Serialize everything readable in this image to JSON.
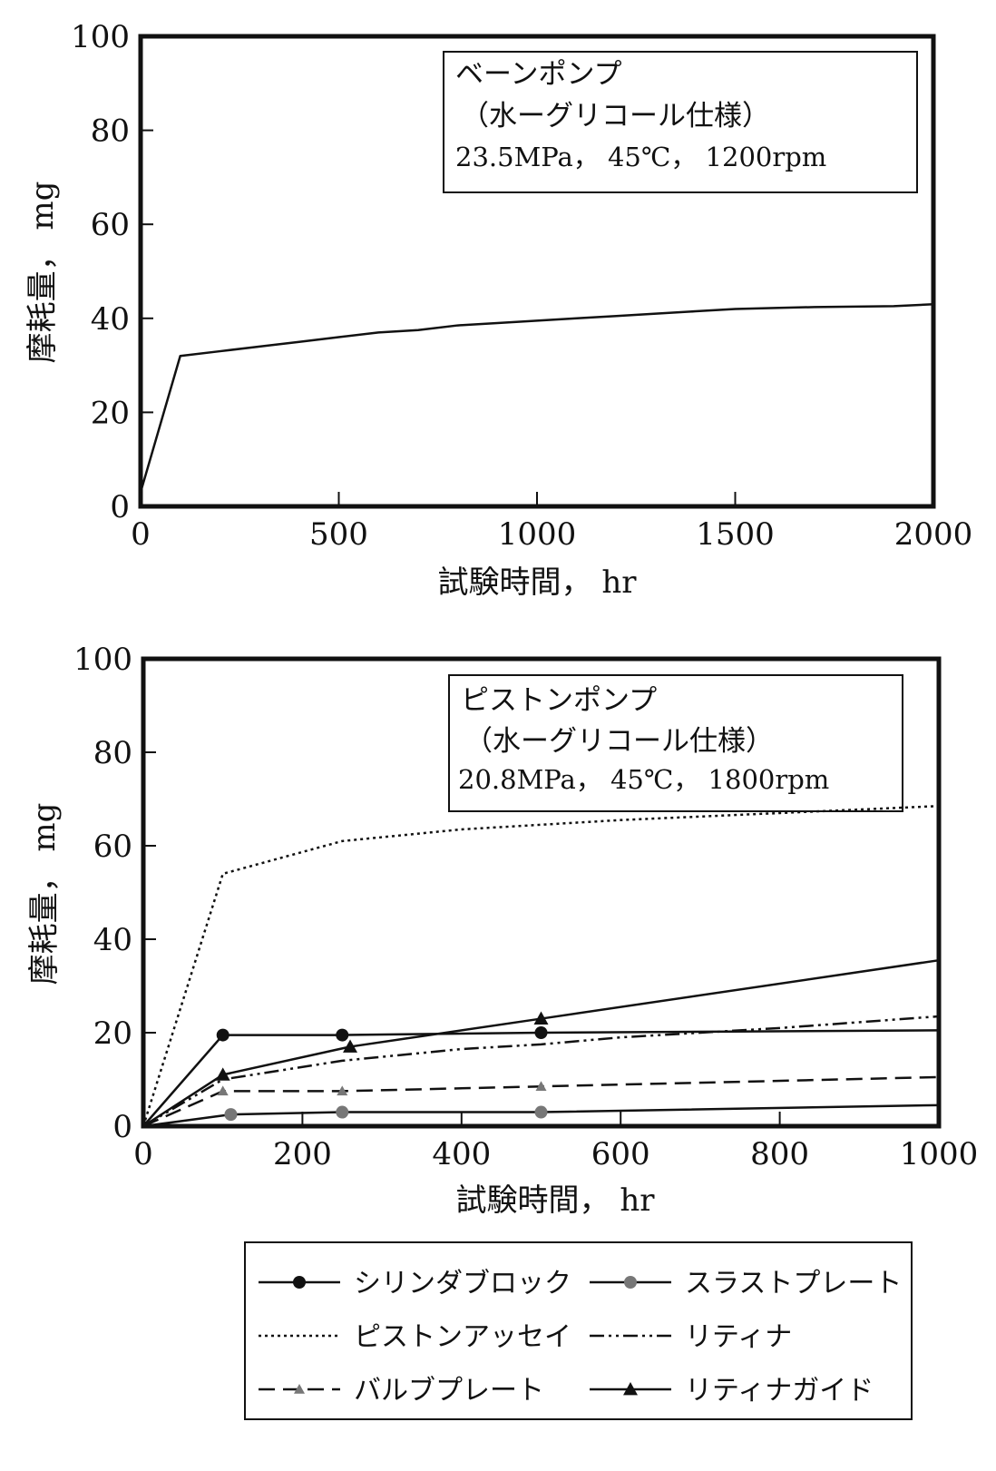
{
  "chart_data": [
    {
      "type": "line",
      "info_box": {
        "line1": "ベーンポンプ",
        "line2": "（水ーグリコール仕様）",
        "line3": "23.5MPa，  45℃，  1200rpm"
      },
      "xlabel": "試験時間，  hr",
      "ylabel": "摩耗量，  mg",
      "xlim": [
        0,
        2000
      ],
      "ylim": [
        0,
        100
      ],
      "xticks": [
        "0",
        "500",
        "1000",
        "1500",
        "2000"
      ],
      "yticks": [
        "0",
        "20",
        "40",
        "60",
        "80",
        "100"
      ],
      "grid": false,
      "series": [
        {
          "style": "solid",
          "marker": "none",
          "x": [
            0,
            100,
            200,
            300,
            400,
            500,
            600,
            700,
            800,
            900,
            1000,
            1100,
            1200,
            1300,
            1400,
            1500,
            1600,
            1700,
            1800,
            1900,
            2000
          ],
          "y": [
            3,
            32,
            33,
            34,
            35,
            36,
            37,
            37.5,
            38.5,
            39,
            39.5,
            40,
            40.5,
            41,
            41.5,
            42,
            42.2,
            42.4,
            42.5,
            42.6,
            43
          ]
        }
      ]
    },
    {
      "type": "line",
      "info_box": {
        "line1": "ピストンポンプ",
        "line2": "（水ーグリコール仕様）",
        "line3": "20.8MPa，  45℃，  1800rpm"
      },
      "xlabel": "試験時間，  hr",
      "ylabel": "摩耗量，  mg",
      "xlim": [
        0,
        1000
      ],
      "ylim": [
        0,
        100
      ],
      "xticks": [
        "0",
        "200",
        "400",
        "600",
        "800",
        "1000"
      ],
      "yticks": [
        "0",
        "20",
        "40",
        "60",
        "80",
        "100"
      ],
      "grid": false,
      "legend_position": "below",
      "series": [
        {
          "name": "シリンダブロック",
          "style": "solid",
          "marker": "circle",
          "x": [
            0,
            100,
            250,
            500,
            1000
          ],
          "y": [
            0,
            19.5,
            19.5,
            20,
            20.5
          ],
          "marker_x": [
            100,
            250,
            500
          ],
          "marker_y": [
            19.5,
            19.5,
            20
          ]
        },
        {
          "name": "スラストプレート",
          "style": "solid",
          "marker": "circle-gray",
          "x": [
            0,
            110,
            250,
            500,
            1000
          ],
          "y": [
            0,
            2.5,
            3,
            3,
            4.5
          ],
          "marker_x": [
            110,
            250,
            500
          ],
          "marker_y": [
            2.5,
            3,
            3
          ]
        },
        {
          "name": "ピストンアッセイ",
          "style": "dotted",
          "marker": "none",
          "x": [
            0,
            100,
            250,
            400,
            500,
            600,
            800,
            1000
          ],
          "y": [
            0,
            54,
            61,
            63.5,
            64.5,
            65.5,
            67,
            68.5
          ],
          "marker_x": [],
          "marker_y": []
        },
        {
          "name": "リティナ",
          "style": "dashdotdot",
          "marker": "none",
          "x": [
            0,
            100,
            250,
            400,
            500,
            600,
            800,
            1000
          ],
          "y": [
            0,
            10,
            14,
            16.5,
            17.5,
            19,
            21,
            23.5
          ],
          "marker_x": [],
          "marker_y": []
        },
        {
          "name": "バルブプレート",
          "style": "longdash",
          "marker": "triangle-gray",
          "x": [
            0,
            100,
            250,
            500,
            1000
          ],
          "y": [
            0,
            7.5,
            7.5,
            8.5,
            10.5
          ],
          "marker_x": [
            100,
            250,
            500
          ],
          "marker_y": [
            7.5,
            7.5,
            8.5
          ]
        },
        {
          "name": "リティナガイド",
          "style": "solid",
          "marker": "triangle",
          "x": [
            0,
            100,
            260,
            500,
            1000
          ],
          "y": [
            0,
            11,
            17,
            23,
            35.5
          ],
          "marker_x": [
            100,
            260,
            500
          ],
          "marker_y": [
            11,
            17,
            23
          ]
        }
      ]
    }
  ],
  "colors": {
    "line": "#111111",
    "gray_marker": "#777777",
    "background": "#ffffff"
  }
}
